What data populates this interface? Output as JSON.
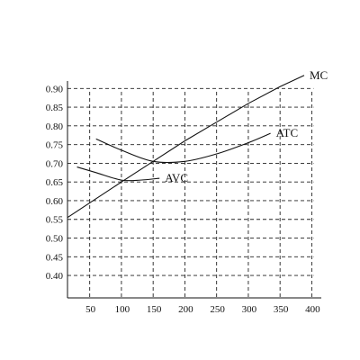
{
  "chart_data": {
    "type": "line",
    "title": "",
    "xlabel": "",
    "ylabel": "",
    "x_ticks": [
      50,
      100,
      150,
      200,
      250,
      300,
      350,
      400
    ],
    "x_tick_labels": [
      "50",
      "100",
      "150",
      "200",
      "250",
      "300",
      "350",
      "400"
    ],
    "y_ticks": [
      0.4,
      0.45,
      0.5,
      0.55,
      0.6,
      0.65,
      0.7,
      0.75,
      0.8,
      0.85,
      0.9
    ],
    "y_tick_labels": [
      "0.40",
      "0.45",
      "0.50",
      "0.55",
      "0.60",
      "0.65",
      "0.70",
      "0.75",
      "0.80",
      "0.85",
      "0.90"
    ],
    "xlim": [
      15,
      415
    ],
    "ylim": [
      0.34,
      0.92
    ],
    "grid": true,
    "legend": "none",
    "series": [
      {
        "name": "MC",
        "x": [
          15,
          100,
          150,
          200,
          250,
          300,
          350,
          388
        ],
        "y": [
          0.555,
          0.65,
          0.705,
          0.76,
          0.81,
          0.86,
          0.905,
          0.935
        ]
      },
      {
        "name": "ATC",
        "x": [
          60,
          100,
          150,
          200,
          250,
          300,
          335
        ],
        "y": [
          0.765,
          0.735,
          0.705,
          0.705,
          0.725,
          0.755,
          0.78
        ]
      },
      {
        "name": "AVC",
        "x": [
          30,
          60,
          100,
          130,
          160
        ],
        "y": [
          0.69,
          0.675,
          0.655,
          0.655,
          0.66
        ]
      }
    ]
  }
}
